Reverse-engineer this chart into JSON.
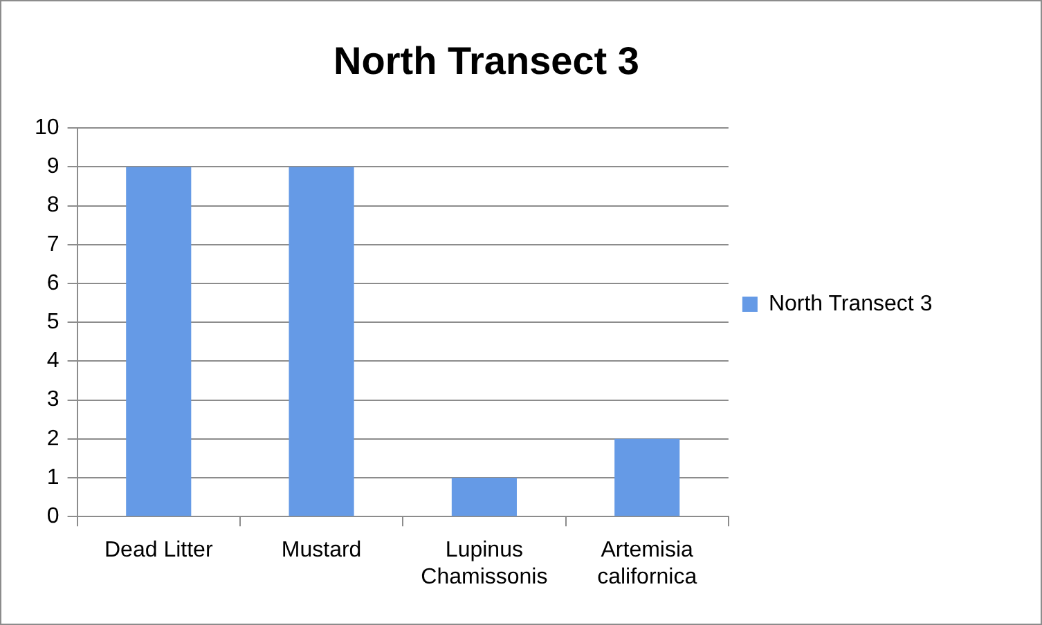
{
  "chart_data": {
    "type": "bar",
    "title": "North Transect 3",
    "categories": [
      "Dead Litter",
      "Mustard",
      "Lupinus Chamissonis",
      "Artemisia californica"
    ],
    "series": [
      {
        "name": "North Transect 3",
        "color": "#659ae6",
        "values": [
          9,
          9,
          1,
          2
        ]
      }
    ],
    "ylim": [
      0,
      10
    ],
    "yticks": [
      0,
      1,
      2,
      3,
      4,
      5,
      6,
      7,
      8,
      9,
      10
    ],
    "grid": "y",
    "legend": "right"
  }
}
